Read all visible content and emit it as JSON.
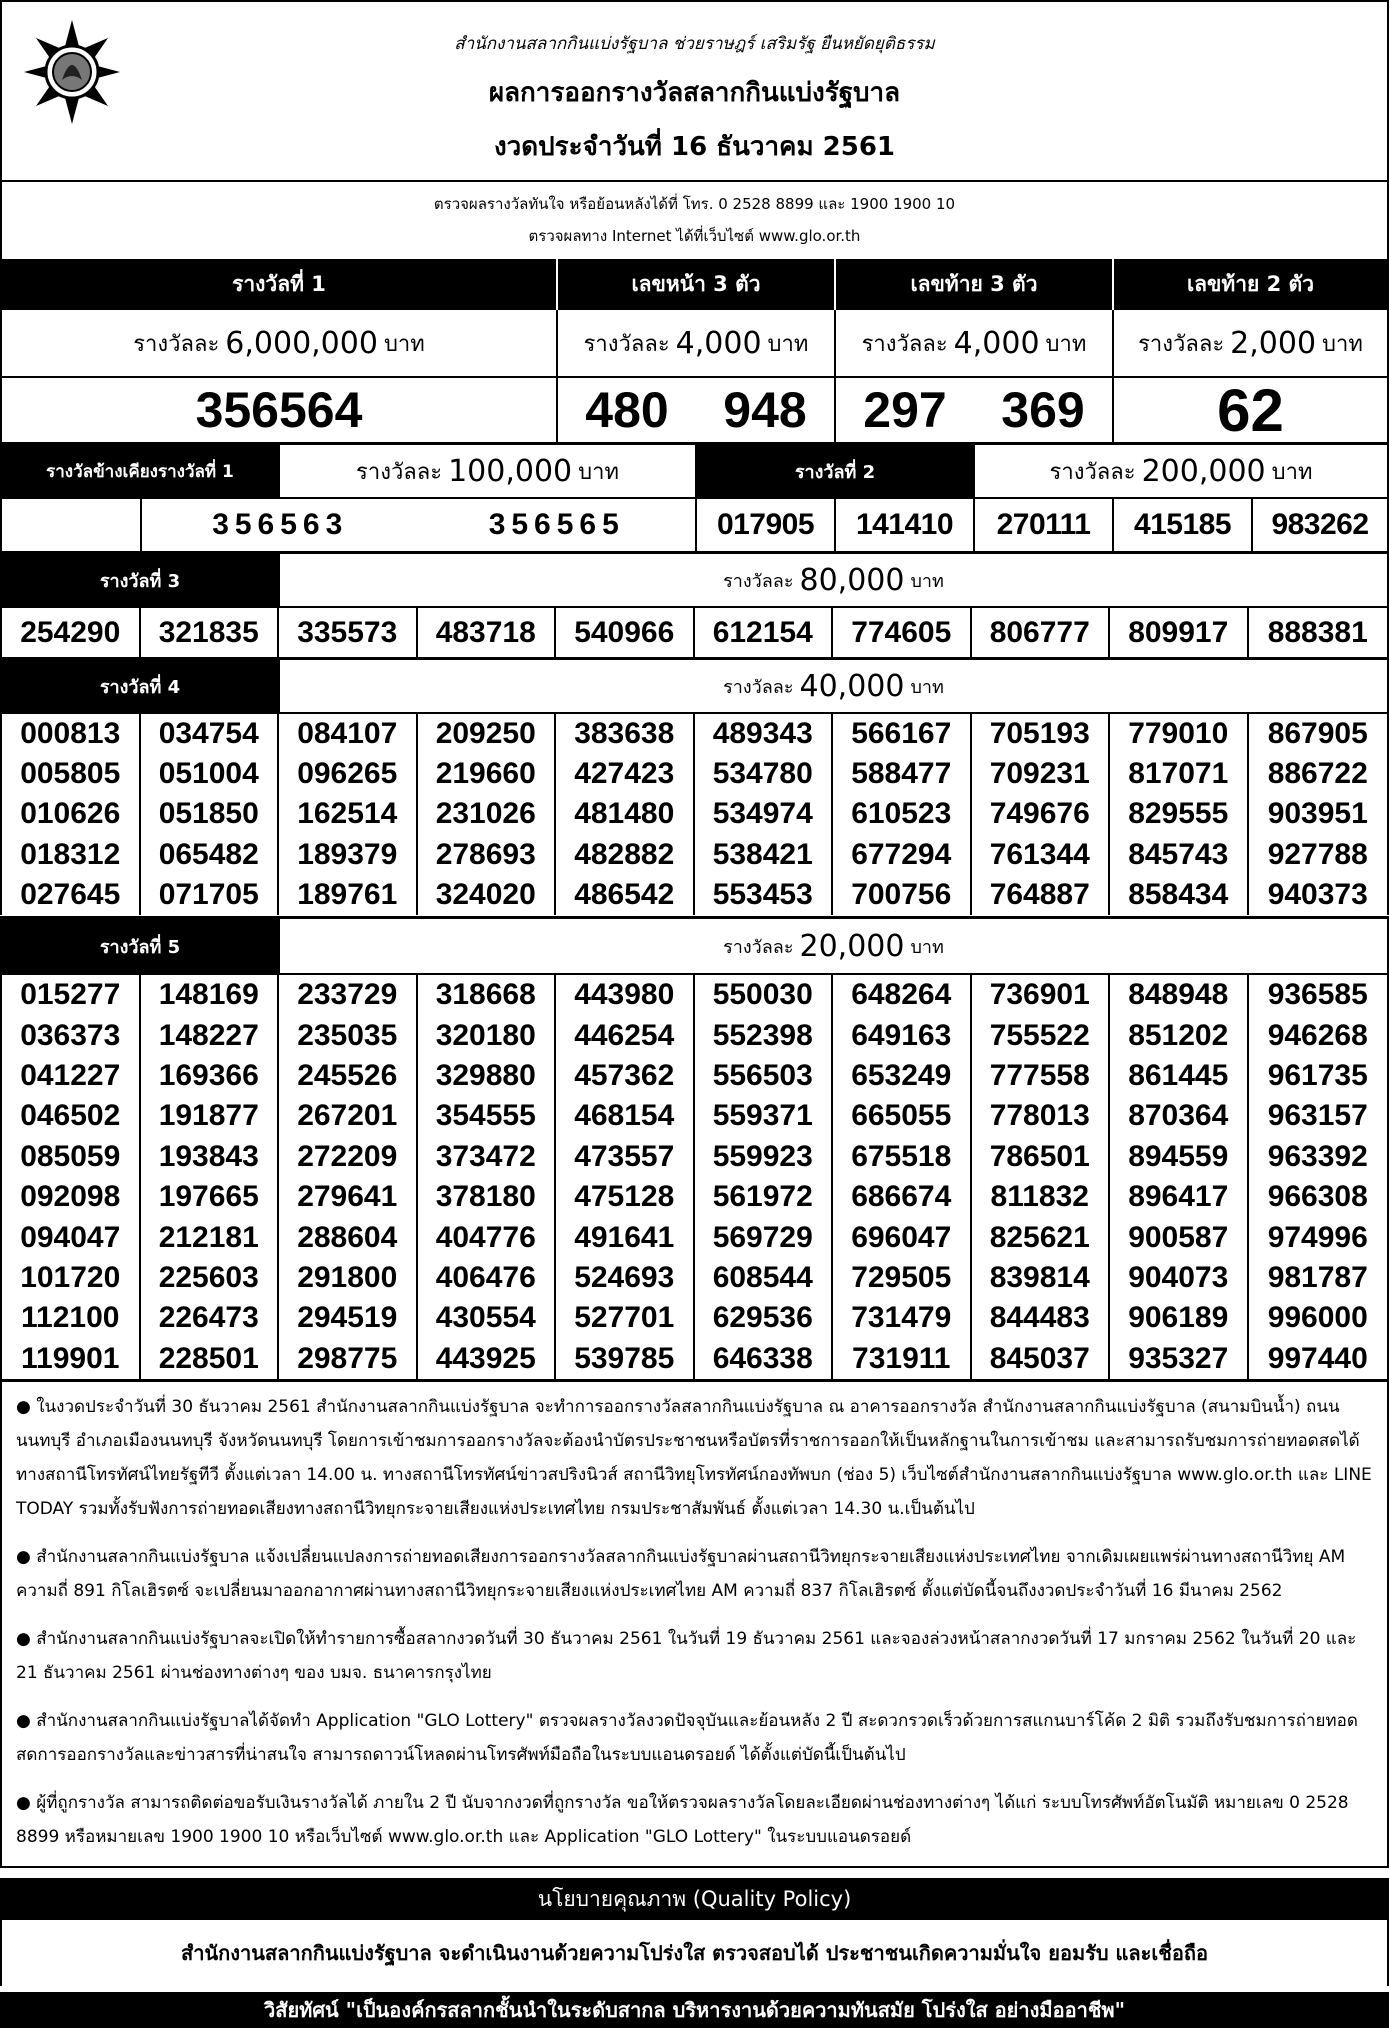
{
  "header": {
    "motto": "สำนักงานสลากกินแบ่งรัฐบาล   ช่วยราษฎร์   เสริมรัฐ   ยืนหยัดยุติธรรม",
    "title": "ผลการออกรางวัลสลากกินแบ่งรัฐบาล",
    "date": "งวดประจำวันที่ 16 ธันวาคม 2561",
    "logo_text": "สำนักงานสลากกินแบ่งรัฐบาล"
  },
  "info": {
    "line1": "ตรวจผลรางวัลทันใจ  หรือย้อนหลังได้ที่  โทร. 0 2528 8899 และ 1900 1900 10",
    "line2": "ตรวจผลทาง Internet ได้ที่เว็บไซต์  www.glo.or.th"
  },
  "top_prizes": [
    {
      "label": "รางวัลที่ 1",
      "amount_prefix": "รางวัลละ",
      "amount": "6,000,000",
      "unit": "บาท",
      "numbers": [
        "356564"
      ]
    },
    {
      "label": "เลขหน้า 3 ตัว",
      "amount_prefix": "รางวัลละ",
      "amount": "4,000",
      "unit": "บาท",
      "numbers": [
        "480",
        "948"
      ]
    },
    {
      "label": "เลขท้าย 3 ตัว",
      "amount_prefix": "รางวัลละ",
      "amount": "4,000",
      "unit": "บาท",
      "numbers": [
        "297",
        "369"
      ]
    },
    {
      "label": "เลขท้าย 2 ตัว",
      "amount_prefix": "รางวัลละ",
      "amount": "2,000",
      "unit": "บาท",
      "numbers": [
        "62"
      ]
    }
  ],
  "near_first": {
    "label": "รางวัลข้างเคียงรางวัลที่ 1",
    "amount_prefix": "รางวัลละ",
    "amount": "100,000",
    "unit": "บาท",
    "numbers": [
      "356563",
      "356565"
    ]
  },
  "prize2": {
    "label": "รางวัลที่  2",
    "amount_prefix": "รางวัลละ",
    "amount": "200,000",
    "unit": "บาท",
    "numbers": [
      "017905",
      "141410",
      "270111",
      "415185",
      "983262"
    ]
  },
  "prize3": {
    "label": "รางวัลที่  3",
    "amount_prefix": "รางวัลละ",
    "amount": "80,000",
    "unit": "บาท",
    "numbers": [
      "254290",
      "321835",
      "335573",
      "483718",
      "540966",
      "612154",
      "774605",
      "806777",
      "809917",
      "888381"
    ]
  },
  "prize4": {
    "label": "รางวัลที่  4",
    "amount_prefix": "รางวัลละ",
    "amount": "40,000",
    "unit": "บาท",
    "numbers": [
      "000813",
      "034754",
      "084107",
      "209250",
      "383638",
      "489343",
      "566167",
      "705193",
      "779010",
      "867905",
      "005805",
      "051004",
      "096265",
      "219660",
      "427423",
      "534780",
      "588477",
      "709231",
      "817071",
      "886722",
      "010626",
      "051850",
      "162514",
      "231026",
      "481480",
      "534974",
      "610523",
      "749676",
      "829555",
      "903951",
      "018312",
      "065482",
      "189379",
      "278693",
      "482882",
      "538421",
      "677294",
      "761344",
      "845743",
      "927788",
      "027645",
      "071705",
      "189761",
      "324020",
      "486542",
      "553453",
      "700756",
      "764887",
      "858434",
      "940373"
    ]
  },
  "prize5": {
    "label": "รางวัลที่  5",
    "amount_prefix": "รางวัลละ",
    "amount": "20,000",
    "unit": "บาท",
    "numbers": [
      "015277",
      "148169",
      "233729",
      "318668",
      "443980",
      "550030",
      "648264",
      "736901",
      "848948",
      "936585",
      "036373",
      "148227",
      "235035",
      "320180",
      "446254",
      "552398",
      "649163",
      "755522",
      "851202",
      "946268",
      "041227",
      "169366",
      "245526",
      "329880",
      "457362",
      "556503",
      "653249",
      "777558",
      "861445",
      "961735",
      "046502",
      "191877",
      "267201",
      "354555",
      "468154",
      "559371",
      "665055",
      "778013",
      "870364",
      "963157",
      "085059",
      "193843",
      "272209",
      "373472",
      "473557",
      "559923",
      "675518",
      "786501",
      "894559",
      "963392",
      "092098",
      "197665",
      "279641",
      "378180",
      "475128",
      "561972",
      "686674",
      "811832",
      "896417",
      "966308",
      "094047",
      "212181",
      "288604",
      "404776",
      "491641",
      "569729",
      "696047",
      "825621",
      "900587",
      "974996",
      "101720",
      "225603",
      "291800",
      "406476",
      "524693",
      "608544",
      "729505",
      "839814",
      "904073",
      "981787",
      "112100",
      "226473",
      "294519",
      "430554",
      "527701",
      "629536",
      "731479",
      "844483",
      "906189",
      "996000",
      "119901",
      "228501",
      "298775",
      "443925",
      "539785",
      "646338",
      "731911",
      "845037",
      "935327",
      "997440"
    ]
  },
  "notes": [
    "● ในงวดประจำวันที่ 30 ธันวาคม 2561 สำนักงานสลากกินแบ่งรัฐบาล จะทำการออกรางวัลสลากกินแบ่งรัฐบาล ณ อาคารออกรางวัล สำนักงานสลากกินแบ่งรัฐบาล (สนามบินน้ำ) ถนนนนทบุรี อำเภอเมืองนนทบุรี จังหวัดนนทบุรี  โดยการเข้าชมการออกรางวัลจะต้องนำบัตรประชาชนหรือบัตรที่ราชการออกให้เป็นหลักฐานในการเข้าชม และสามารถรับชมการถ่ายทอดสดได้ทางสถานีโทรทัศน์ไทยรัฐทีวี ตั้งแต่เวลา 14.00 น. ทางสถานีโทรทัศน์ข่าวสปริงนิวส์  สถานีวิทยุโทรทัศน์กองทัพบก (ช่อง 5)  เว็บไซต์สำนักงานสลากกินแบ่งรัฐบาล www.glo.or.th  และ LINE TODAY รวมทั้งรับฟังการถ่ายทอดเสียงทางสถานีวิทยุกระจายเสียงแห่งประเทศไทย กรมประชาสัมพันธ์ ตั้งแต่เวลา 14.30 น.เป็นต้นไป",
    "● สำนักงานสลากกินแบ่งรัฐบาล แจ้งเปลี่ยนแปลงการถ่ายทอดเสียงการออกรางวัลสลากกินแบ่งรัฐบาลผ่านสถานีวิทยุกระจายเสียงแห่งประเทศไทย จากเดิมเผยแพร่ผ่านทางสถานีวิทยุ AM ความถี่ 891 กิโลเฮิรตซ์ จะเปลี่ยนมาออกอากาศผ่านทางสถานีวิทยุกระจายเสียงแห่งประเทศไทย AM ความถี่ 837 กิโลเฮิรตซ์ ตั้งแต่บัดนี้จนถึงงวดประจำวันที่ 16 มีนาคม 2562",
    "● สำนักงานสลากกินแบ่งรัฐบาลจะเปิดให้ทำรายการซื้อสลากงวดวันที่ 30 ธันวาคม 2561 ในวันที่ 19 ธันวาคม 2561 และจองล่วงหน้าสลากงวดวันที่ 17 มกราคม 2562 ในวันที่ 20 และ 21 ธันวาคม 2561 ผ่านช่องทางต่างๆ ของ บมจ. ธนาคารกรุงไทย",
    "● สำนักงานสลากกินแบ่งรัฐบาลได้จัดทำ Application \"GLO Lottery\" ตรวจผลรางวัลงวดปัจจุบันและย้อนหลัง 2 ปี สะดวกรวดเร็วด้วยการสแกนบาร์โค้ด 2 มิติ รวมถึงรับชมการถ่ายทอดสดการออกรางวัลและข่าวสารที่น่าสนใจ สามารถดาวน์โหลดผ่านโทรศัพท์มือถือในระบบแอนดรอยด์ ได้ตั้งแต่บัดนี้เป็นต้นไป",
    "● ผู้ที่ถูกรางวัล สามารถติดต่อขอรับเงินรางวัลได้ ภายใน 2 ปี นับจากงวดที่ถูกรางวัล ขอให้ตรวจผลรางวัลโดยละเอียดผ่านช่องทางต่างๆ ได้แก่ ระบบโทรศัพท์อัตโนมัติ หมายเลข 0 2528 8899 หรือหมายเลข 1900 1900 10 หรือเว็บไซต์ www.glo.or.th และ Application \"GLO Lottery\" ในระบบแอนดรอยด์"
  ],
  "footer": {
    "policy_title": "นโยบายคุณภาพ (Quality Policy)",
    "policy_text": "สำนักงานสลากกินแบ่งรัฐบาล จะดำเนินงานด้วยความโปร่งใส ตรวจสอบได้ ประชาชนเกิดความมั่นใจ ยอมรับ และเชื่อถือ",
    "vision": "วิสัยทัศน์ \"เป็นองค์กรสลากชั้นนำในระดับสากล บริหารงานด้วยความทันสมัย โปร่งใส อย่างมืออาชีพ\""
  },
  "colors": {
    "ink": "#000000",
    "paper": "#ffffff"
  }
}
